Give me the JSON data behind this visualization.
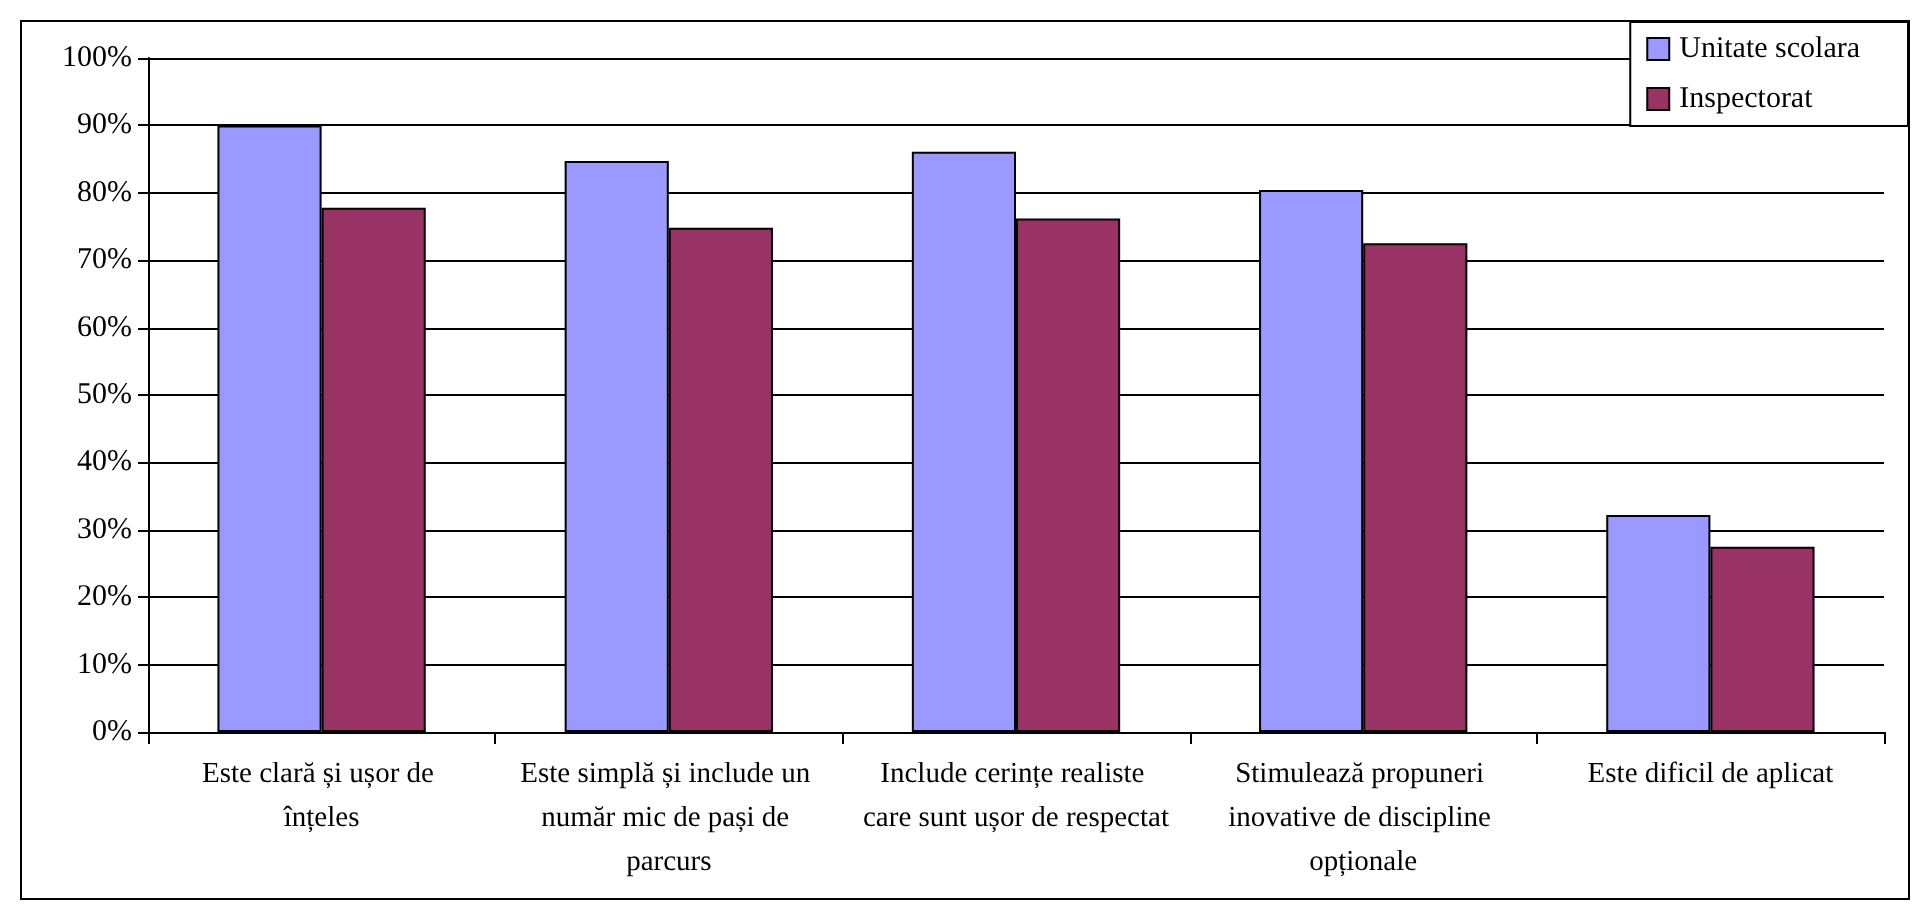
{
  "chart_data": {
    "type": "bar",
    "categories": [
      "Este clară și ușor de înțeles",
      "Este simplă și include un număr mic de pași de parcurs",
      "Include cerințe realiste care sunt ușor de respectat",
      "Stimulează propuneri inovative de discipline opționale",
      "Este dificil de aplicat"
    ],
    "series": [
      {
        "name": "Unitate scolara",
        "color": "#9999ff",
        "values": [
          90,
          84.7,
          86.1,
          80.4,
          32.2
        ]
      },
      {
        "name": "Inspectorat",
        "color": "#993366",
        "values": [
          77.8,
          74.8,
          76.2,
          72.5,
          27.5
        ]
      }
    ],
    "ylim": [
      0,
      100
    ],
    "yticks": [
      {
        "value": 0,
        "label": "0%"
      },
      {
        "value": 10,
        "label": "10%"
      },
      {
        "value": 20,
        "label": "20%"
      },
      {
        "value": 30,
        "label": "30%"
      },
      {
        "value": 40,
        "label": "40%"
      },
      {
        "value": 50,
        "label": "50%"
      },
      {
        "value": 60,
        "label": "60%"
      },
      {
        "value": 70,
        "label": "70%"
      },
      {
        "value": 80,
        "label": "80%"
      },
      {
        "value": 90,
        "label": "90%"
      },
      {
        "value": 100,
        "label": "100%"
      }
    ],
    "grid": "y",
    "legend": "top right"
  }
}
